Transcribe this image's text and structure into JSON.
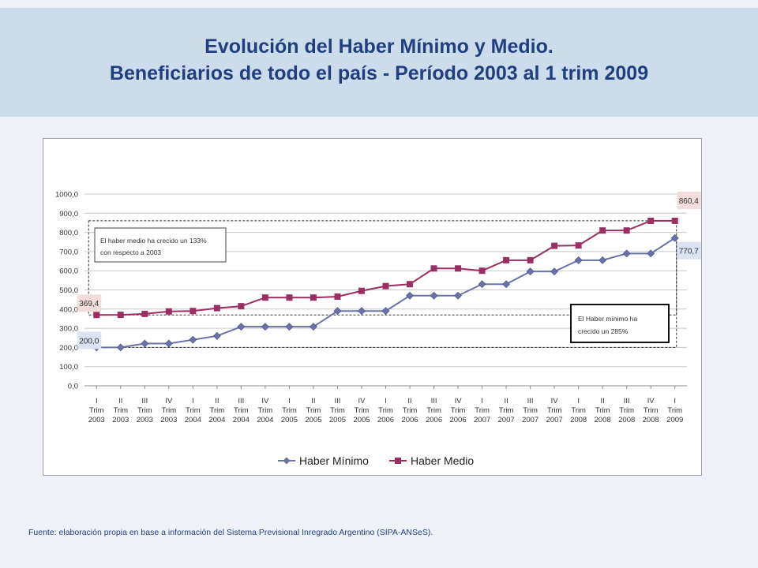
{
  "title": {
    "line1": "Evolución del Haber Mínimo y Medio.",
    "line2": "Beneficiarios de todo el país - Período 2003 al 1 trim 2009"
  },
  "source": "Fuente: elaboración propia en base a información del Sistema Previsional Inregrado Argentino (SIPA-ANSeS).",
  "colors": {
    "haber_minimo": "#6a73a8",
    "haber_medio": "#9b2f63",
    "title": "#1f3f7f",
    "label_bg_min": "#dbe3f2",
    "label_bg_med": "#f2dcdc"
  },
  "chart_data": {
    "type": "line",
    "ylim": [
      0,
      1000
    ],
    "y_ticks": [
      "0,0",
      "100,0",
      "200,0",
      "300,0",
      "400,0",
      "500,0",
      "600,0",
      "700,0",
      "800,0",
      "900,0",
      "1000,0"
    ],
    "categories": [
      [
        "I",
        "Trim",
        "2003"
      ],
      [
        "II",
        "Trim",
        "2003"
      ],
      [
        "III",
        "Trim",
        "2003"
      ],
      [
        "IV",
        "Trim",
        "2003"
      ],
      [
        "I",
        "Trim",
        "2004"
      ],
      [
        "II",
        "Trim",
        "2004"
      ],
      [
        "III",
        "Trim",
        "2004"
      ],
      [
        "IV",
        "Trim",
        "2004"
      ],
      [
        "I",
        "Trim",
        "2005"
      ],
      [
        "II",
        "Trim",
        "2005"
      ],
      [
        "III",
        "Trim",
        "2005"
      ],
      [
        "IV",
        "Trim",
        "2005"
      ],
      [
        "I",
        "Trim",
        "2006"
      ],
      [
        "II",
        "Trim",
        "2006"
      ],
      [
        "III",
        "Trim",
        "2006"
      ],
      [
        "IV",
        "Trim",
        "2006"
      ],
      [
        "I",
        "Trim",
        "2007"
      ],
      [
        "II",
        "Trim",
        "2007"
      ],
      [
        "III",
        "Trim",
        "2007"
      ],
      [
        "IV",
        "Trim",
        "2007"
      ],
      [
        "I",
        "Trim",
        "2008"
      ],
      [
        "II",
        "Trim",
        "2008"
      ],
      [
        "III",
        "Trim",
        "2008"
      ],
      [
        "IV",
        "Trim",
        "2008"
      ],
      [
        "I",
        "Trim",
        "2009"
      ]
    ],
    "series": [
      {
        "name": "Haber Mínimo",
        "marker": "diamond",
        "values": [
          200,
          200,
          220,
          220,
          240,
          260,
          308,
          308,
          308,
          308,
          390,
          390,
          390,
          470,
          470,
          470,
          530,
          530,
          596,
          596,
          655,
          655,
          690,
          690,
          770.7
        ]
      },
      {
        "name": "Haber Medio",
        "marker": "square",
        "values": [
          369.4,
          370,
          375,
          388,
          390,
          405,
          415,
          460,
          460,
          460,
          465,
          495,
          520,
          530,
          612,
          612,
          600,
          655,
          655,
          730,
          732,
          810,
          810,
          860.4,
          860.4
        ]
      }
    ],
    "data_labels": [
      {
        "series": 0,
        "index": 0,
        "text": "200,0"
      },
      {
        "series": 1,
        "index": 0,
        "text": "369,4"
      },
      {
        "series": 0,
        "index": 24,
        "text": "770,7"
      },
      {
        "series": 1,
        "index": 24,
        "text": "860,4"
      }
    ],
    "annotations": {
      "medio": [
        "El haber medio ha crecido un 133%",
        "con respecto a 2003"
      ],
      "minimo": [
        "El Haber mínimo ha",
        "crecido un 285%"
      ]
    },
    "grid": true,
    "legend_position": "bottom"
  }
}
